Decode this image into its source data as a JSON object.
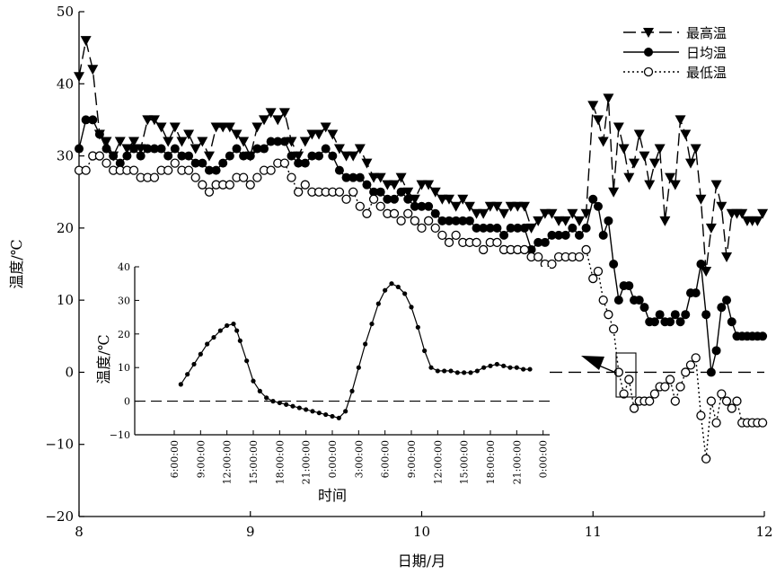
{
  "chart_data": [
    {
      "type": "line",
      "xlabel": "日期/月",
      "ylabel": "温度/℃",
      "xlim": [
        8,
        12
      ],
      "ylim": [
        -20,
        50
      ],
      "xticks": [
        "8",
        "9",
        "10",
        "11",
        "12"
      ],
      "yticks": [
        "−20",
        "−10",
        "0",
        "10",
        "20",
        "30",
        "40",
        "50"
      ],
      "legend_position": "top-right",
      "grid": false,
      "series": [
        {
          "name": "最高温",
          "style": "dashed",
          "marker": "triangle-down",
          "x": [
            8.0,
            8.04,
            8.08,
            8.12,
            8.16,
            8.2,
            8.24,
            8.28,
            8.32,
            8.36,
            8.4,
            8.44,
            8.48,
            8.52,
            8.56,
            8.6,
            8.64,
            8.68,
            8.72,
            8.76,
            8.8,
            8.84,
            8.88,
            8.92,
            8.96,
            9.0,
            9.04,
            9.08,
            9.12,
            9.16,
            9.2,
            9.24,
            9.28,
            9.32,
            9.36,
            9.4,
            9.44,
            9.48,
            9.52,
            9.56,
            9.6,
            9.64,
            9.68,
            9.72,
            9.76,
            9.8,
            9.84,
            9.88,
            9.92,
            9.96,
            10.0,
            10.04,
            10.08,
            10.12,
            10.16,
            10.2,
            10.24,
            10.28,
            10.32,
            10.36,
            10.4,
            10.44,
            10.48,
            10.52,
            10.56,
            10.6,
            10.64,
            10.68,
            10.72,
            10.76,
            10.8,
            10.84,
            10.88,
            10.92,
            10.96,
            11.0,
            11.03,
            11.06,
            11.09,
            11.12,
            11.15,
            11.18,
            11.21,
            11.24,
            11.27,
            11.3,
            11.33,
            11.36,
            11.39,
            11.42,
            11.45,
            11.48,
            11.51,
            11.54,
            11.57,
            11.6,
            11.63,
            11.66,
            11.69,
            11.72,
            11.75,
            11.78,
            11.81,
            11.84,
            11.87,
            11.9,
            11.93,
            11.96,
            11.99
          ],
          "values": [
            41,
            46,
            42,
            33,
            32,
            30,
            32,
            31,
            32,
            31,
            35,
            35,
            34,
            32,
            34,
            32,
            33,
            31,
            32,
            30,
            34,
            34,
            34,
            33,
            32,
            30,
            34,
            35,
            36,
            35,
            36,
            32,
            30,
            32,
            33,
            33,
            34,
            33,
            31,
            30,
            30,
            31,
            29,
            27,
            27,
            26,
            26,
            27,
            25,
            24,
            26,
            26,
            25,
            24,
            24,
            23,
            24,
            23,
            22,
            22,
            23,
            23,
            22,
            23,
            23,
            23,
            20,
            21,
            22,
            22,
            21,
            21,
            22,
            21,
            22,
            37,
            35,
            32,
            38,
            25,
            34,
            31,
            27,
            29,
            33,
            30,
            26,
            29,
            31,
            21,
            27,
            26,
            35,
            33,
            29,
            31,
            24,
            14,
            20,
            26,
            23,
            16,
            22,
            22,
            22,
            21,
            21,
            21,
            22
          ]
        },
        {
          "name": "日均温",
          "style": "solid",
          "marker": "circle-filled",
          "x": [
            8.0,
            8.04,
            8.08,
            8.12,
            8.16,
            8.2,
            8.24,
            8.28,
            8.32,
            8.36,
            8.4,
            8.44,
            8.48,
            8.52,
            8.56,
            8.6,
            8.64,
            8.68,
            8.72,
            8.76,
            8.8,
            8.84,
            8.88,
            8.92,
            8.96,
            9.0,
            9.04,
            9.08,
            9.12,
            9.16,
            9.2,
            9.24,
            9.28,
            9.32,
            9.36,
            9.4,
            9.44,
            9.48,
            9.52,
            9.56,
            9.6,
            9.64,
            9.68,
            9.72,
            9.76,
            9.8,
            9.84,
            9.88,
            9.92,
            9.96,
            10.0,
            10.04,
            10.08,
            10.12,
            10.16,
            10.2,
            10.24,
            10.28,
            10.32,
            10.36,
            10.4,
            10.44,
            10.48,
            10.52,
            10.56,
            10.6,
            10.64,
            10.68,
            10.72,
            10.76,
            10.8,
            10.84,
            10.88,
            10.92,
            10.96,
            11.0,
            11.03,
            11.06,
            11.09,
            11.12,
            11.15,
            11.18,
            11.21,
            11.24,
            11.27,
            11.3,
            11.33,
            11.36,
            11.39,
            11.42,
            11.45,
            11.48,
            11.51,
            11.54,
            11.57,
            11.6,
            11.63,
            11.66,
            11.69,
            11.72,
            11.75,
            11.78,
            11.81,
            11.84,
            11.87,
            11.9,
            11.93,
            11.96,
            11.99
          ],
          "values": [
            31,
            35,
            35,
            33,
            31,
            30,
            29,
            30,
            31,
            30,
            31,
            31,
            31,
            30,
            31,
            30,
            30,
            29,
            29,
            28,
            28,
            29,
            30,
            31,
            30,
            30,
            31,
            31,
            32,
            32,
            32,
            30,
            29,
            29,
            30,
            30,
            31,
            30,
            28,
            27,
            27,
            27,
            26,
            25,
            25,
            24,
            24,
            25,
            24,
            23,
            23,
            23,
            22,
            21,
            21,
            21,
            21,
            21,
            20,
            20,
            20,
            20,
            19,
            20,
            20,
            20,
            17,
            18,
            18,
            19,
            19,
            19,
            20,
            19,
            20,
            24,
            23,
            19,
            21,
            15,
            10,
            12,
            12,
            10,
            10,
            9,
            7,
            7,
            8,
            7,
            7,
            8,
            7,
            8,
            11,
            11,
            15,
            8,
            0,
            3,
            9,
            10,
            7,
            5,
            5,
            5,
            5,
            5,
            5
          ]
        },
        {
          "name": "最低温",
          "style": "dotted",
          "marker": "circle-open",
          "x": [
            8.0,
            8.04,
            8.08,
            8.12,
            8.16,
            8.2,
            8.24,
            8.28,
            8.32,
            8.36,
            8.4,
            8.44,
            8.48,
            8.52,
            8.56,
            8.6,
            8.64,
            8.68,
            8.72,
            8.76,
            8.8,
            8.84,
            8.88,
            8.92,
            8.96,
            9.0,
            9.04,
            9.08,
            9.12,
            9.16,
            9.2,
            9.24,
            9.28,
            9.32,
            9.36,
            9.4,
            9.44,
            9.48,
            9.52,
            9.56,
            9.6,
            9.64,
            9.68,
            9.72,
            9.76,
            9.8,
            9.84,
            9.88,
            9.92,
            9.96,
            10.0,
            10.04,
            10.08,
            10.12,
            10.16,
            10.2,
            10.24,
            10.28,
            10.32,
            10.36,
            10.4,
            10.44,
            10.48,
            10.52,
            10.56,
            10.6,
            10.64,
            10.68,
            10.72,
            10.76,
            10.8,
            10.84,
            10.88,
            10.92,
            10.96,
            11.0,
            11.03,
            11.06,
            11.09,
            11.12,
            11.15,
            11.18,
            11.21,
            11.24,
            11.27,
            11.3,
            11.33,
            11.36,
            11.39,
            11.42,
            11.45,
            11.48,
            11.51,
            11.54,
            11.57,
            11.6,
            11.63,
            11.66,
            11.69,
            11.72,
            11.75,
            11.78,
            11.81,
            11.84,
            11.87,
            11.9,
            11.93,
            11.96,
            11.99
          ],
          "values": [
            28,
            28,
            30,
            30,
            29,
            28,
            28,
            28,
            28,
            27,
            27,
            27,
            28,
            28,
            29,
            28,
            28,
            27,
            26,
            25,
            26,
            26,
            26,
            27,
            27,
            26,
            27,
            28,
            28,
            29,
            29,
            27,
            25,
            26,
            25,
            25,
            25,
            25,
            25,
            24,
            25,
            23,
            22,
            24,
            23,
            22,
            22,
            21,
            22,
            21,
            20,
            21,
            20,
            19,
            18,
            19,
            18,
            18,
            18,
            17,
            18,
            18,
            17,
            17,
            17,
            17,
            16,
            16,
            15,
            15,
            16,
            16,
            16,
            16,
            17,
            13,
            14,
            10,
            8,
            6,
            0,
            -3,
            -1,
            -5,
            -4,
            -4,
            -4,
            -3,
            -2,
            -2,
            -1,
            -4,
            -2,
            0,
            1,
            2,
            -6,
            -12,
            -4,
            -7,
            -3,
            -4,
            -5,
            -4,
            -7,
            -7,
            -7,
            -7,
            -7
          ]
        }
      ]
    },
    {
      "type": "line",
      "xlabel": "时间",
      "ylabel": "温度/℃",
      "ylim": [
        -10,
        40
      ],
      "xticks": [
        "6:00:00",
        "9:00:00",
        "12:00:00",
        "15:00:00",
        "18:00:00",
        "21:00:00",
        "0:00:00",
        "3:00:00",
        "6:00:00",
        "9:00:00",
        "12:00:00",
        "15:00:00",
        "18:00:00",
        "21:00:00",
        "0:00:00"
      ],
      "yticks": [
        "−10",
        "0",
        "10",
        "20",
        "30",
        "40"
      ],
      "grid": false,
      "series": [
        {
          "style": "solid",
          "marker": "circle-filled",
          "x": [
            7,
            8,
            9,
            10,
            11,
            12,
            13,
            14,
            15,
            15.5,
            16,
            17,
            18,
            19,
            20,
            21,
            22,
            23,
            24,
            25,
            26,
            27,
            28,
            29,
            30,
            31,
            32,
            33,
            34,
            35,
            36,
            37,
            38,
            39,
            40,
            41,
            42,
            43,
            44,
            45,
            46,
            47,
            48,
            49,
            50,
            51,
            52,
            53,
            54,
            55,
            56,
            57,
            58,
            59,
            60
          ],
          "values": [
            5,
            8,
            11,
            14,
            17,
            19,
            21,
            22.5,
            23,
            21,
            18,
            12,
            6,
            3,
            1,
            0,
            -0.5,
            -1,
            -1.5,
            -2,
            -2.5,
            -3,
            -3.5,
            -4,
            -4.5,
            -5,
            -3,
            3,
            10,
            17,
            23,
            29,
            33,
            35,
            34,
            32,
            28,
            22,
            15,
            10,
            9,
            9,
            9,
            8.5,
            8.5,
            8.5,
            9,
            10,
            10.5,
            11,
            10.5,
            10,
            10,
            9.5,
            9.5
          ]
        }
      ]
    }
  ]
}
